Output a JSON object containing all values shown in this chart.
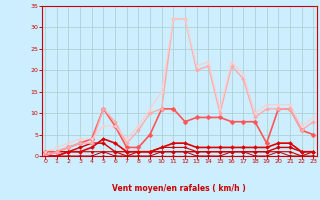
{
  "x": [
    0,
    1,
    2,
    3,
    4,
    5,
    6,
    7,
    8,
    9,
    10,
    11,
    12,
    13,
    14,
    15,
    16,
    17,
    18,
    19,
    20,
    21,
    22,
    23
  ],
  "series": [
    {
      "y": [
        0,
        0,
        0,
        0,
        0,
        0,
        0,
        0,
        0,
        0,
        0,
        0,
        0,
        0,
        0,
        0,
        0,
        0,
        0,
        0,
        0,
        0,
        0,
        0
      ],
      "color": "#bb0000",
      "lw": 0.7,
      "marker": "D",
      "ms": 1.5
    },
    {
      "y": [
        0,
        0,
        0,
        0,
        0,
        1,
        0,
        0,
        0,
        0,
        1,
        1,
        1,
        0,
        0,
        0,
        1,
        1,
        0,
        0,
        1,
        0,
        0,
        0
      ],
      "color": "#bb0000",
      "lw": 0.7,
      "marker": "D",
      "ms": 1.5
    },
    {
      "y": [
        0,
        0,
        1,
        1,
        1,
        1,
        1,
        0,
        1,
        1,
        2,
        2,
        2,
        1,
        1,
        1,
        1,
        1,
        1,
        1,
        1,
        1,
        0,
        1
      ],
      "color": "#cc0000",
      "lw": 0.8,
      "marker": "D",
      "ms": 1.5
    },
    {
      "y": [
        0,
        1,
        1,
        2,
        3,
        3,
        1,
        1,
        1,
        1,
        1,
        1,
        1,
        1,
        1,
        1,
        1,
        1,
        1,
        1,
        2,
        2,
        1,
        1
      ],
      "color": "#cc0000",
      "lw": 1.0,
      "marker": "D",
      "ms": 2.0
    },
    {
      "y": [
        0,
        0,
        1,
        1,
        2,
        4,
        3,
        1,
        1,
        1,
        2,
        3,
        3,
        2,
        2,
        2,
        2,
        2,
        2,
        2,
        3,
        3,
        1,
        1
      ],
      "color": "#dd0000",
      "lw": 1.2,
      "marker": "D",
      "ms": 2.0
    },
    {
      "y": [
        1,
        1,
        2,
        3,
        4,
        11,
        7,
        2,
        2,
        5,
        11,
        11,
        8,
        9,
        9,
        9,
        8,
        8,
        8,
        3,
        11,
        11,
        6,
        5
      ],
      "color": "#ff5555",
      "lw": 1.2,
      "marker": "D",
      "ms": 2.5
    },
    {
      "y": [
        0,
        1,
        2,
        3,
        3,
        11,
        8,
        3,
        6,
        10,
        11,
        32,
        32,
        20,
        21,
        10,
        21,
        18,
        9,
        11,
        11,
        11,
        6,
        8
      ],
      "color": "#ffaaaa",
      "lw": 1.0,
      "marker": "D",
      "ms": 2.0
    },
    {
      "y": [
        1,
        2,
        3,
        4,
        4,
        7,
        7,
        4,
        7,
        11,
        15,
        32,
        32,
        21,
        22,
        11,
        22,
        19,
        10,
        12,
        12,
        12,
        7,
        9
      ],
      "color": "#ffcccc",
      "lw": 0.8,
      "marker": "D",
      "ms": 1.5
    }
  ],
  "xlim": [
    -0.3,
    23.3
  ],
  "ylim": [
    0,
    35
  ],
  "yticks": [
    0,
    5,
    10,
    15,
    20,
    25,
    30,
    35
  ],
  "xticks": [
    0,
    1,
    2,
    3,
    4,
    5,
    6,
    7,
    8,
    9,
    10,
    11,
    12,
    13,
    14,
    15,
    16,
    17,
    18,
    19,
    20,
    21,
    22,
    23
  ],
  "xlabel": "Vent moyen/en rafales ( km/h )",
  "bg_color": "#cceeff",
  "grid_color": "#aacccc",
  "tick_color": "#cc0000",
  "label_color": "#cc0000",
  "spine_color": "#cc0000",
  "arrow_color": "#cc0000"
}
